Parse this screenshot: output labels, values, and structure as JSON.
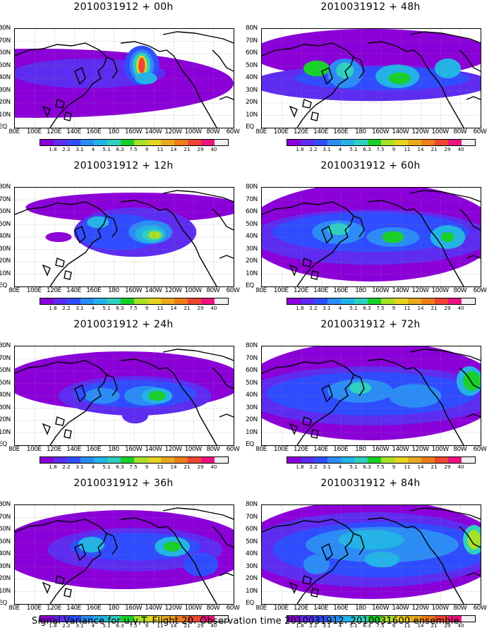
{
  "panels": [
    {
      "title": "2010031912 + 00h",
      "col": 0,
      "row": 0,
      "blobs": [
        [
          0.1,
          0.55,
          0.9,
          0.35,
          0
        ],
        [
          0.34,
          0.45,
          0.35,
          0.15,
          1
        ],
        [
          0.58,
          0.37,
          0.08,
          0.2,
          2
        ],
        [
          0.58,
          0.37,
          0.055,
          0.16,
          3
        ],
        [
          0.58,
          0.37,
          0.04,
          0.13,
          5
        ],
        [
          0.58,
          0.37,
          0.025,
          0.1,
          8
        ],
        [
          0.58,
          0.37,
          0.015,
          0.08,
          11
        ],
        [
          0.6,
          0.5,
          0.05,
          0.06,
          4
        ]
      ]
    },
    {
      "title": "2010031912 + 48h",
      "col": 1,
      "row": 0,
      "blobs": [
        [
          0.5,
          0.25,
          0.55,
          0.25,
          0
        ],
        [
          0.5,
          0.55,
          0.55,
          0.18,
          1
        ],
        [
          0.55,
          0.5,
          0.4,
          0.12,
          2
        ],
        [
          0.38,
          0.45,
          0.08,
          0.15,
          3
        ],
        [
          0.62,
          0.48,
          0.1,
          0.12,
          4
        ],
        [
          0.38,
          0.42,
          0.04,
          0.08,
          5
        ],
        [
          0.63,
          0.5,
          0.05,
          0.06,
          6
        ],
        [
          0.85,
          0.4,
          0.06,
          0.1,
          4
        ],
        [
          0.25,
          0.4,
          0.06,
          0.08,
          6
        ]
      ]
    },
    {
      "title": "2010031912 + 12h",
      "col": 0,
      "row": 1,
      "blobs": [
        [
          0.55,
          0.2,
          0.5,
          0.15,
          0
        ],
        [
          0.55,
          0.45,
          0.28,
          0.25,
          1
        ],
        [
          0.48,
          0.45,
          0.2,
          0.18,
          2
        ],
        [
          0.62,
          0.45,
          0.1,
          0.12,
          3
        ],
        [
          0.62,
          0.47,
          0.07,
          0.09,
          4
        ],
        [
          0.63,
          0.48,
          0.05,
          0.06,
          5
        ],
        [
          0.64,
          0.48,
          0.03,
          0.04,
          7
        ],
        [
          0.38,
          0.35,
          0.05,
          0.06,
          4
        ],
        [
          0.2,
          0.5,
          0.06,
          0.05,
          0
        ]
      ]
    },
    {
      "title": "2010031912 + 60h",
      "col": 1,
      "row": 1,
      "blobs": [
        [
          0.5,
          0.45,
          0.58,
          0.5,
          0
        ],
        [
          0.5,
          0.5,
          0.55,
          0.28,
          1
        ],
        [
          0.5,
          0.45,
          0.45,
          0.2,
          2
        ],
        [
          0.35,
          0.45,
          0.12,
          0.12,
          3
        ],
        [
          0.6,
          0.5,
          0.12,
          0.1,
          3
        ],
        [
          0.85,
          0.5,
          0.08,
          0.12,
          4
        ],
        [
          0.35,
          0.42,
          0.05,
          0.06,
          5
        ],
        [
          0.6,
          0.5,
          0.05,
          0.06,
          6
        ],
        [
          0.85,
          0.5,
          0.03,
          0.05,
          6
        ]
      ]
    },
    {
      "title": "2010031912 + 24h",
      "col": 0,
      "row": 2,
      "blobs": [
        [
          0.5,
          0.35,
          0.55,
          0.3,
          0
        ],
        [
          0.55,
          0.5,
          0.35,
          0.2,
          1
        ],
        [
          0.55,
          0.48,
          0.28,
          0.14,
          2
        ],
        [
          0.6,
          0.5,
          0.1,
          0.1,
          3
        ],
        [
          0.65,
          0.5,
          0.07,
          0.08,
          4
        ],
        [
          0.65,
          0.5,
          0.04,
          0.05,
          6
        ],
        [
          0.4,
          0.5,
          0.08,
          0.08,
          3
        ],
        [
          0.55,
          0.7,
          0.06,
          0.08,
          1
        ]
      ]
    },
    {
      "title": "2010031912 + 72h",
      "col": 1,
      "row": 2,
      "blobs": [
        [
          0.5,
          0.45,
          0.6,
          0.5,
          0
        ],
        [
          0.5,
          0.5,
          0.58,
          0.3,
          1
        ],
        [
          0.5,
          0.48,
          0.48,
          0.22,
          2
        ],
        [
          0.45,
          0.45,
          0.15,
          0.12,
          3
        ],
        [
          0.7,
          0.5,
          0.12,
          0.12,
          3
        ],
        [
          0.95,
          0.35,
          0.06,
          0.15,
          4
        ],
        [
          0.96,
          0.35,
          0.04,
          0.1,
          6
        ],
        [
          0.45,
          0.42,
          0.05,
          0.06,
          5
        ]
      ]
    },
    {
      "title": "2010031912 + 36h",
      "col": 0,
      "row": 3,
      "blobs": [
        [
          0.5,
          0.45,
          0.58,
          0.4,
          0
        ],
        [
          0.55,
          0.45,
          0.4,
          0.22,
          1
        ],
        [
          0.55,
          0.42,
          0.3,
          0.14,
          2
        ],
        [
          0.72,
          0.42,
          0.08,
          0.1,
          4
        ],
        [
          0.72,
          0.42,
          0.04,
          0.05,
          6
        ],
        [
          0.35,
          0.4,
          0.06,
          0.08,
          4
        ],
        [
          0.85,
          0.6,
          0.08,
          0.12,
          2
        ]
      ]
    },
    {
      "title": "2010031912 + 84h",
      "col": 1,
      "row": 3,
      "blobs": [
        [
          0.5,
          0.45,
          0.6,
          0.5,
          0
        ],
        [
          0.5,
          0.45,
          0.58,
          0.38,
          1
        ],
        [
          0.55,
          0.45,
          0.5,
          0.28,
          2
        ],
        [
          0.55,
          0.4,
          0.35,
          0.18,
          3
        ],
        [
          0.5,
          0.35,
          0.15,
          0.1,
          4
        ],
        [
          0.55,
          0.55,
          0.08,
          0.08,
          4
        ],
        [
          0.97,
          0.35,
          0.05,
          0.15,
          5
        ],
        [
          0.97,
          0.35,
          0.03,
          0.1,
          7
        ],
        [
          0.25,
          0.6,
          0.06,
          0.1,
          3
        ]
      ]
    }
  ],
  "lat_labels": [
    "80N",
    "70N",
    "60N",
    "50N",
    "40N",
    "30N",
    "20N",
    "10N",
    "EQ"
  ],
  "lon_labels": [
    "80E",
    "100E",
    "120E",
    "140E",
    "160E",
    "180",
    "160W",
    "140W",
    "120W",
    "100W",
    "80W",
    "60W"
  ],
  "colorbar": {
    "colors": [
      "#8b00d8",
      "#5e2cf0",
      "#2f4dff",
      "#2c8cf6",
      "#23b3e6",
      "#2ed0c0",
      "#18d02a",
      "#a6e028",
      "#e2d420",
      "#e8a920",
      "#ee7c18",
      "#ef4634",
      "#ee1480",
      "#f0f0f0"
    ],
    "labels": [
      "1.8",
      "2.2",
      "3.1",
      "4",
      "5.1",
      "6.3",
      "7.5",
      "9",
      "11",
      "14",
      "21",
      "29",
      "40"
    ]
  },
  "caption": "Signal Variance for u,v,T. Flight 20. Observation time 2010031912. 2010031600 ensemble."
}
